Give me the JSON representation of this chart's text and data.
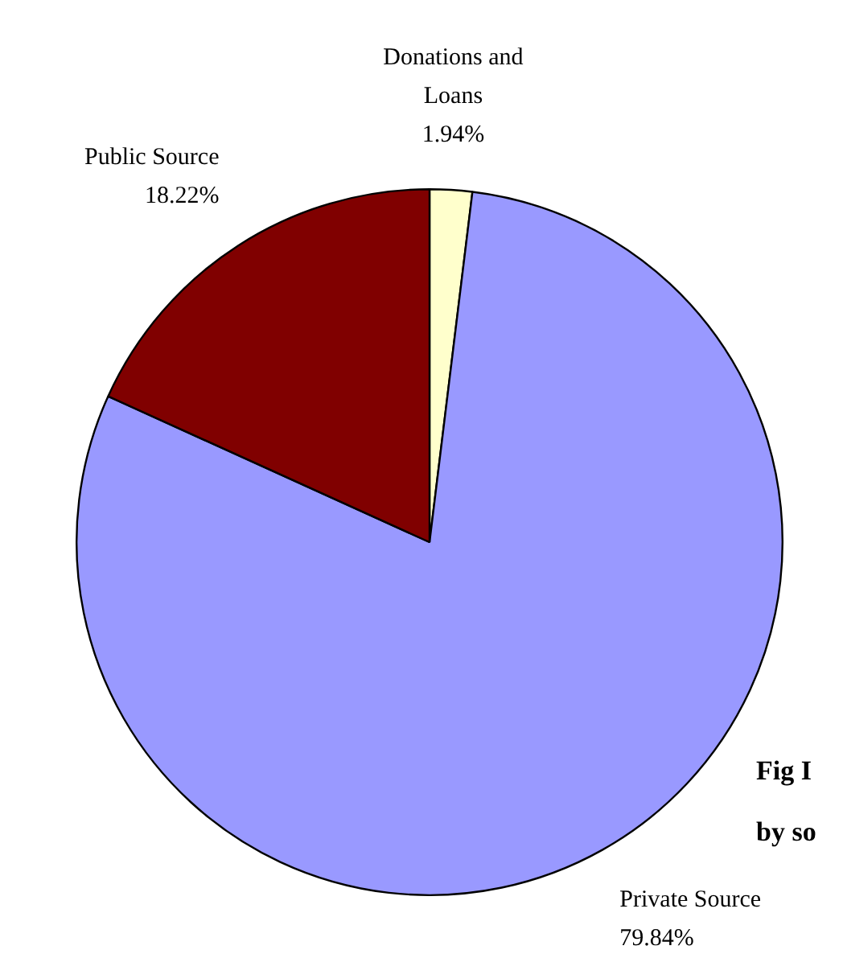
{
  "chart_data": {
    "type": "pie",
    "categories": [
      "Donations and Loans",
      "Private Source",
      "Public Source"
    ],
    "values": [
      1.94,
      79.84,
      18.22
    ],
    "colors": [
      "#ffffcc",
      "#9999ff",
      "#800000"
    ],
    "value_labels": [
      "1.94%",
      "79.84%",
      "18.22%"
    ],
    "annotations": [
      "Fig I",
      "by so"
    ],
    "legend": false
  }
}
